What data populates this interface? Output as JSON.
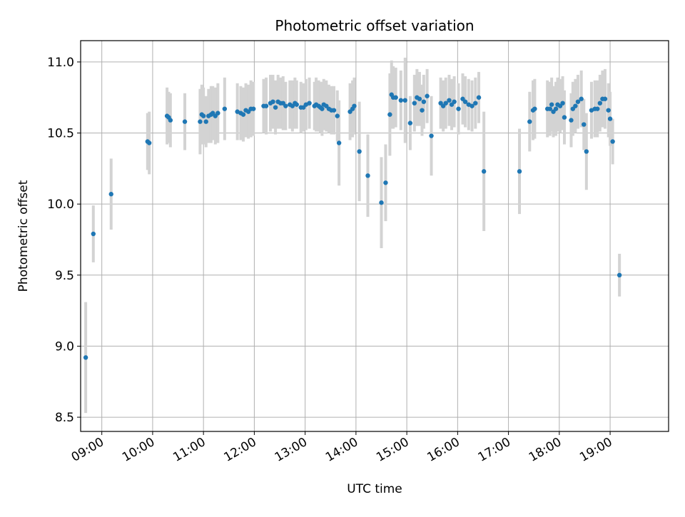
{
  "chart_data": {
    "type": "scatter",
    "title": "Photometric offset variation",
    "xlabel": "UTC time",
    "ylabel": "Photometric offset",
    "xlim": [
      "08:35",
      "20:09"
    ],
    "ylim": [
      8.4,
      11.15
    ],
    "yticks": [
      8.5,
      9.0,
      9.5,
      10.0,
      10.5,
      11.0
    ],
    "ytick_labels": [
      "8.5",
      "9.0",
      "9.5",
      "10.0",
      "10.5",
      "11.0"
    ],
    "xticks": [
      "09:00",
      "10:00",
      "11:00",
      "12:00",
      "13:00",
      "14:00",
      "15:00",
      "16:00",
      "17:00",
      "18:00",
      "19:00"
    ],
    "xtick_labels": [
      "09:00",
      "10:00",
      "11:00",
      "12:00",
      "13:00",
      "14:00",
      "15:00",
      "16:00",
      "17:00",
      "18:00",
      "19:00"
    ],
    "grid": true,
    "point_color": "#1f77b4",
    "errorbar_color": "#d3d3d3",
    "series": [
      {
        "points": [
          [
            "08:41",
            8.92,
            0.39
          ],
          [
            "08:50",
            9.79,
            0.2
          ],
          [
            "09:11",
            10.07,
            0.25
          ],
          [
            "09:54",
            10.44,
            0.2
          ],
          [
            "09:56",
            10.43,
            0.22
          ],
          [
            "10:17",
            10.62,
            0.2
          ],
          [
            "10:19",
            10.61,
            0.18
          ],
          [
            "10:21",
            10.59,
            0.19
          ],
          [
            "10:38",
            10.58,
            0.2
          ],
          [
            "10:56",
            10.58,
            0.23
          ],
          [
            "10:58",
            10.63,
            0.21
          ],
          [
            "11:00",
            10.62,
            0.2
          ],
          [
            "11:03",
            10.58,
            0.18
          ],
          [
            "11:06",
            10.62,
            0.19
          ],
          [
            "11:09",
            10.63,
            0.2
          ],
          [
            "11:11",
            10.64,
            0.19
          ],
          [
            "11:14",
            10.62,
            0.2
          ],
          [
            "11:17",
            10.64,
            0.21
          ],
          [
            "11:25",
            10.67,
            0.22
          ],
          [
            "11:40",
            10.65,
            0.2
          ],
          [
            "11:44",
            10.64,
            0.19
          ],
          [
            "11:47",
            10.63,
            0.19
          ],
          [
            "11:50",
            10.66,
            0.19
          ],
          [
            "11:53",
            10.65,
            0.19
          ],
          [
            "11:56",
            10.67,
            0.2
          ],
          [
            "11:59",
            10.67,
            0.19
          ],
          [
            "12:11",
            10.69,
            0.19
          ],
          [
            "12:14",
            10.69,
            0.2
          ],
          [
            "12:19",
            10.71,
            0.2
          ],
          [
            "12:22",
            10.72,
            0.19
          ],
          [
            "12:25",
            10.68,
            0.19
          ],
          [
            "12:28",
            10.72,
            0.19
          ],
          [
            "12:31",
            10.71,
            0.18
          ],
          [
            "12:34",
            10.71,
            0.19
          ],
          [
            "12:37",
            10.69,
            0.17
          ],
          [
            "12:42",
            10.7,
            0.17
          ],
          [
            "12:45",
            10.69,
            0.18
          ],
          [
            "12:48",
            10.71,
            0.18
          ],
          [
            "12:50",
            10.7,
            0.17
          ],
          [
            "12:55",
            10.68,
            0.18
          ],
          [
            "12:58",
            10.68,
            0.17
          ],
          [
            "13:01",
            10.7,
            0.18
          ],
          [
            "13:05",
            10.71,
            0.18
          ],
          [
            "13:11",
            10.69,
            0.17
          ],
          [
            "13:13",
            10.7,
            0.19
          ],
          [
            "13:16",
            10.69,
            0.18
          ],
          [
            "13:18",
            10.68,
            0.18
          ],
          [
            "13:20",
            10.67,
            0.19
          ],
          [
            "13:22",
            10.7,
            0.18
          ],
          [
            "13:25",
            10.69,
            0.18
          ],
          [
            "13:28",
            10.67,
            0.17
          ],
          [
            "13:31",
            10.66,
            0.17
          ],
          [
            "13:34",
            10.66,
            0.17
          ],
          [
            "13:38",
            10.62,
            0.18
          ],
          [
            "13:40",
            10.43,
            0.3
          ],
          [
            "13:53",
            10.65,
            0.2
          ],
          [
            "13:56",
            10.67,
            0.2
          ],
          [
            "13:58",
            10.69,
            0.2
          ],
          [
            "14:04",
            10.37,
            0.35
          ],
          [
            "14:14",
            10.2,
            0.29
          ],
          [
            "14:30",
            10.01,
            0.32
          ],
          [
            "14:35",
            10.15,
            0.27
          ],
          [
            "14:40",
            10.63,
            0.29
          ],
          [
            "14:42",
            10.77,
            0.24
          ],
          [
            "14:44",
            10.75,
            0.22
          ],
          [
            "14:47",
            10.75,
            0.21
          ],
          [
            "14:53",
            10.73,
            0.21
          ],
          [
            "14:58",
            10.73,
            0.3
          ],
          [
            "15:04",
            10.57,
            0.19
          ],
          [
            "15:09",
            10.71,
            0.2
          ],
          [
            "15:12",
            10.75,
            0.2
          ],
          [
            "15:15",
            10.74,
            0.19
          ],
          [
            "15:18",
            10.66,
            0.18
          ],
          [
            "15:20",
            10.72,
            0.19
          ],
          [
            "15:24",
            10.76,
            0.19
          ],
          [
            "15:29",
            10.48,
            0.28
          ],
          [
            "15:40",
            10.71,
            0.18
          ],
          [
            "15:43",
            10.69,
            0.18
          ],
          [
            "15:46",
            10.71,
            0.18
          ],
          [
            "15:50",
            10.73,
            0.18
          ],
          [
            "15:53",
            10.7,
            0.18
          ],
          [
            "15:56",
            10.72,
            0.18
          ],
          [
            "16:01",
            10.67,
            0.18
          ],
          [
            "16:06",
            10.74,
            0.18
          ],
          [
            "16:09",
            10.72,
            0.18
          ],
          [
            "16:13",
            10.7,
            0.18
          ],
          [
            "16:17",
            10.69,
            0.18
          ],
          [
            "16:21",
            10.71,
            0.18
          ],
          [
            "16:25",
            10.75,
            0.18
          ],
          [
            "16:31",
            10.23,
            0.42
          ],
          [
            "17:13",
            10.23,
            0.3
          ],
          [
            "17:25",
            10.58,
            0.21
          ],
          [
            "17:29",
            10.66,
            0.21
          ],
          [
            "17:31",
            10.67,
            0.21
          ],
          [
            "17:46",
            10.67,
            0.2
          ],
          [
            "17:49",
            10.67,
            0.19
          ],
          [
            "17:51",
            10.7,
            0.19
          ],
          [
            "17:53",
            10.65,
            0.18
          ],
          [
            "17:56",
            10.67,
            0.19
          ],
          [
            "17:58",
            10.7,
            0.19
          ],
          [
            "18:01",
            10.69,
            0.19
          ],
          [
            "18:04",
            10.71,
            0.19
          ],
          [
            "18:06",
            10.61,
            0.19
          ],
          [
            "18:14",
            10.59,
            0.19
          ],
          [
            "18:16",
            10.67,
            0.19
          ],
          [
            "18:19",
            10.69,
            0.19
          ],
          [
            "18:22",
            10.72,
            0.19
          ],
          [
            "18:26",
            10.74,
            0.2
          ],
          [
            "18:29",
            10.56,
            0.18
          ],
          [
            "18:32",
            10.37,
            0.27
          ],
          [
            "18:38",
            10.66,
            0.2
          ],
          [
            "18:42",
            10.67,
            0.2
          ],
          [
            "18:45",
            10.67,
            0.2
          ],
          [
            "18:48",
            10.71,
            0.2
          ],
          [
            "18:51",
            10.74,
            0.2
          ],
          [
            "18:54",
            10.74,
            0.21
          ],
          [
            "18:58",
            10.66,
            0.19
          ],
          [
            "19:00",
            10.6,
            0.19
          ],
          [
            "19:03",
            10.44,
            0.16
          ],
          [
            "19:11",
            9.5,
            0.15
          ]
        ]
      }
    ]
  }
}
